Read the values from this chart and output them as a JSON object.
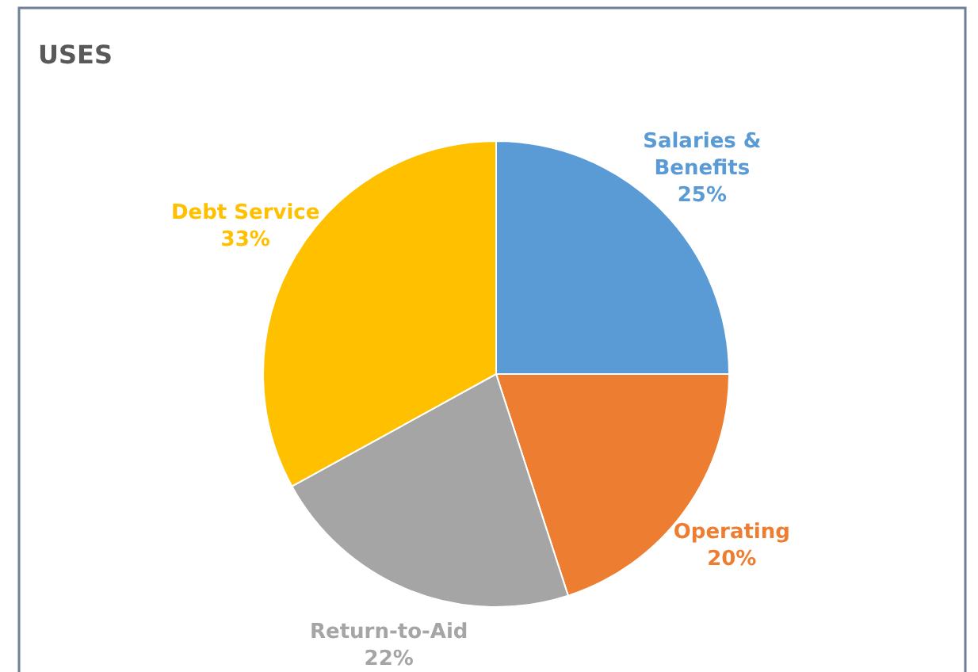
{
  "chart_data": {
    "type": "pie",
    "title": "USES",
    "categories": [
      "Salaries & Benefits",
      "Operating",
      "Return-to-Aid",
      "Debt Service"
    ],
    "values": [
      25,
      20,
      22,
      33
    ],
    "value_labels": [
      "25%",
      "20%",
      "22%",
      "33%"
    ],
    "colors": [
      "#5b9bd5",
      "#ed7d31",
      "#a5a5a5",
      "#ffc000"
    ]
  }
}
